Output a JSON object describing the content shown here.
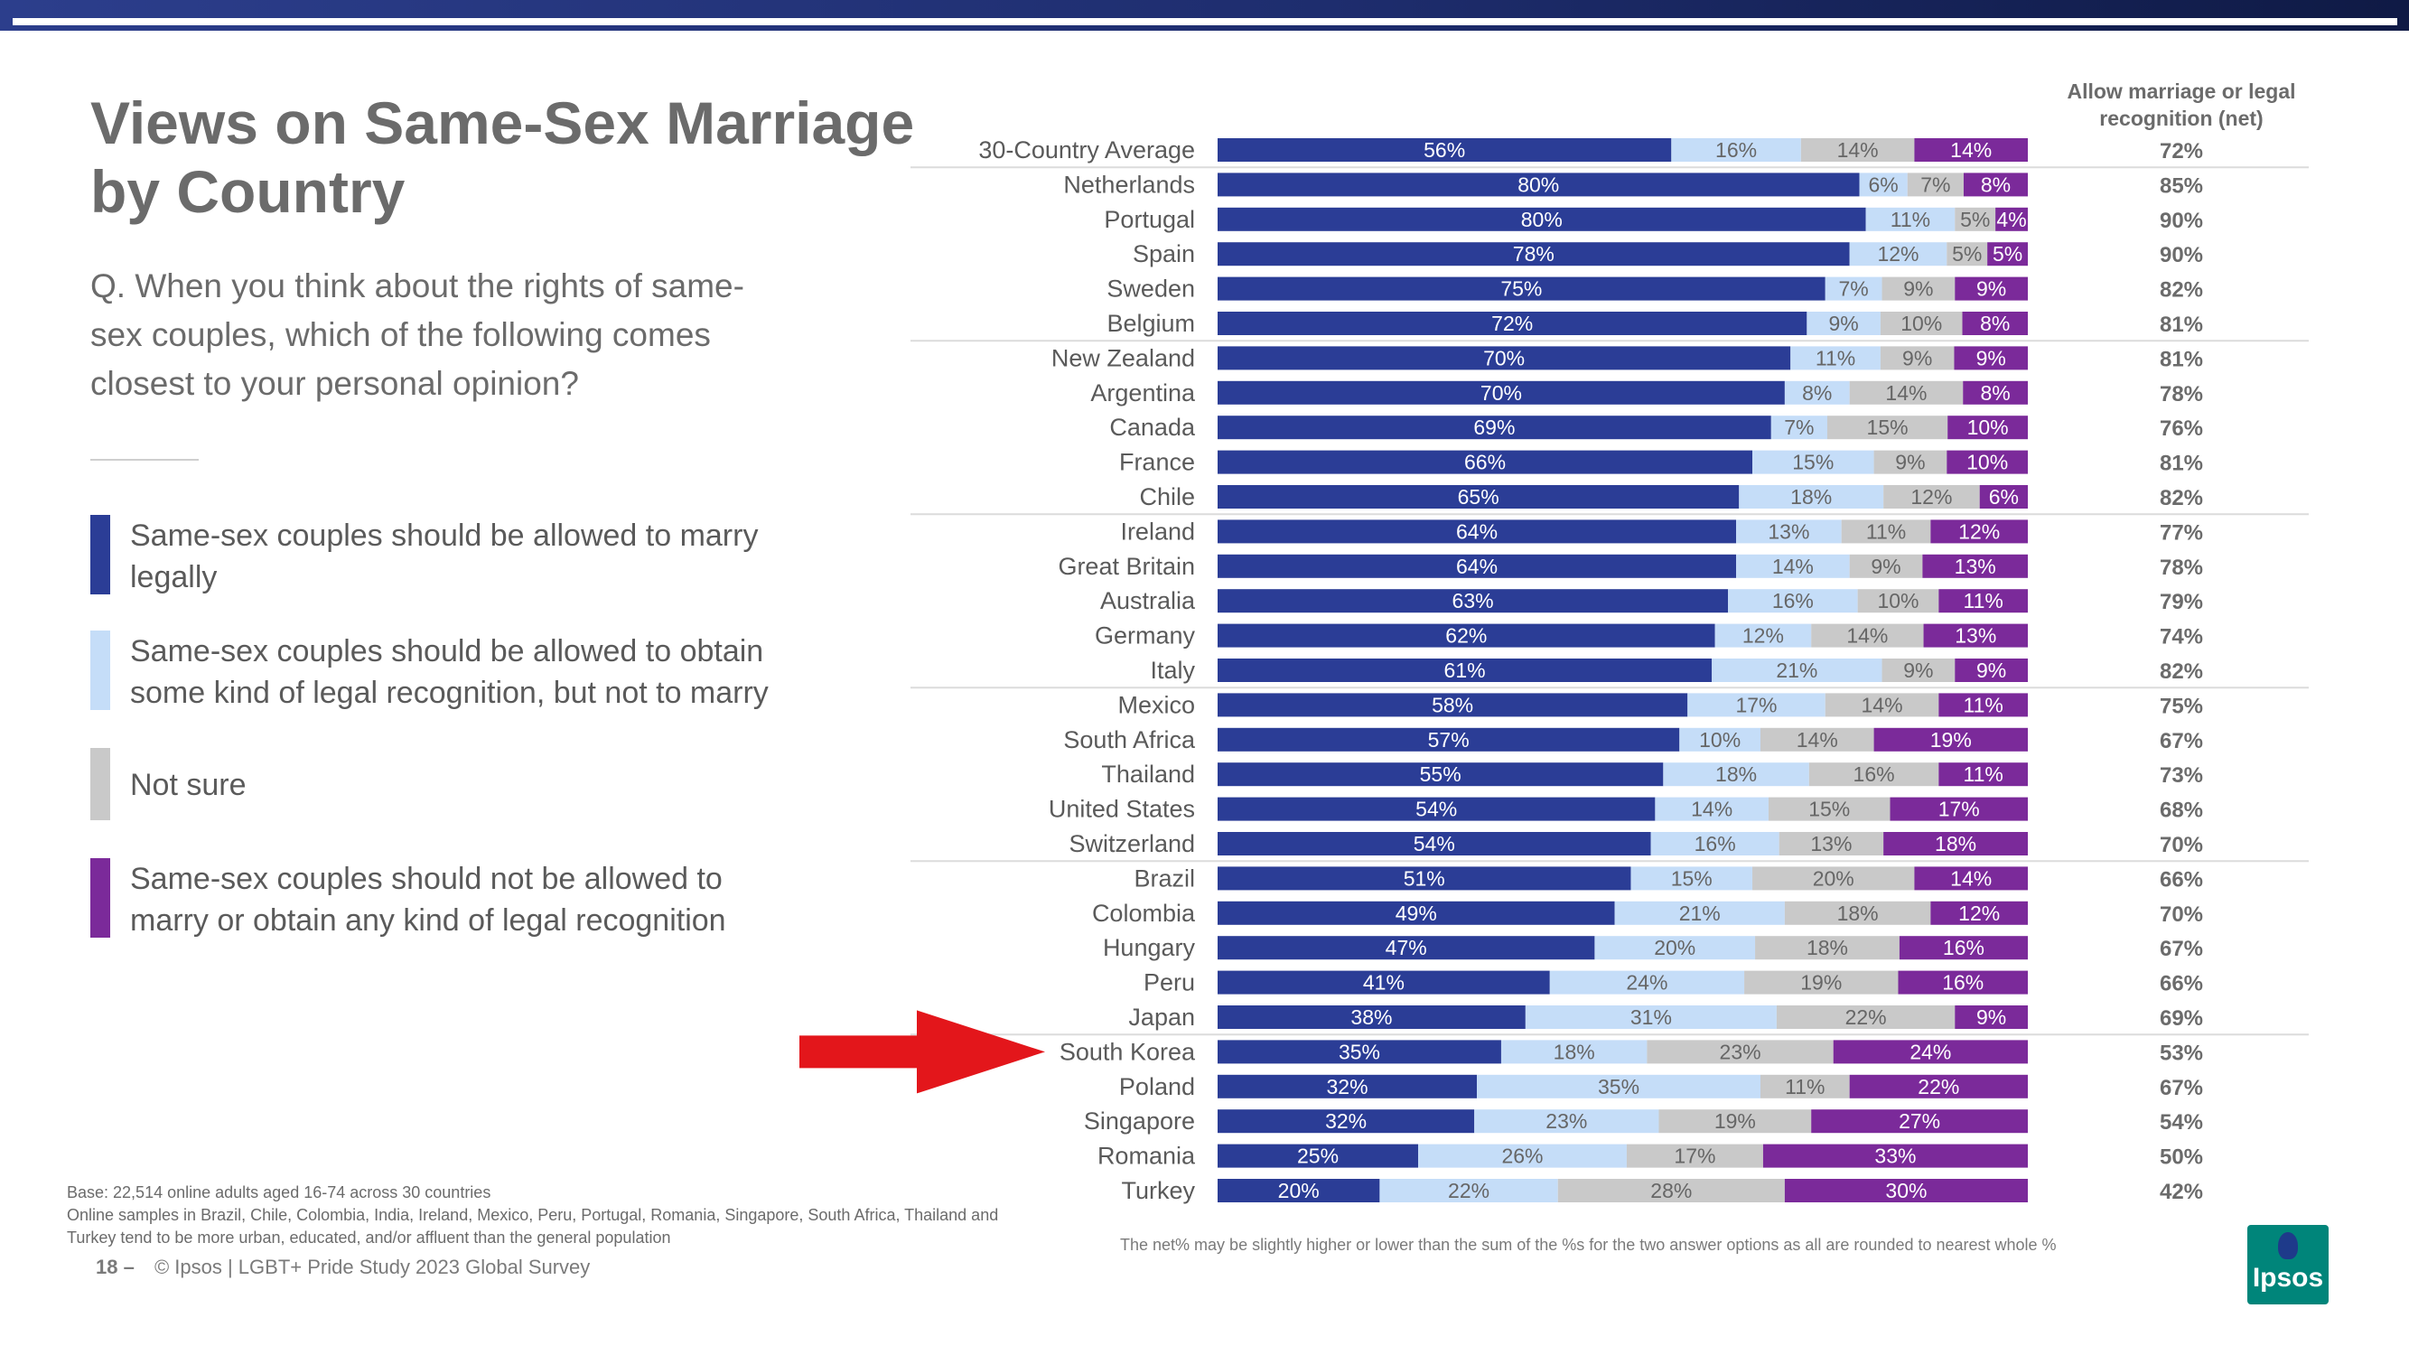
{
  "title": "Views on Same-Sex Marriage by Country",
  "question": "Q. When you think about the rights of same-sex couples, which of the following comes closest to your personal opinion?",
  "legend": [
    {
      "label": "Same-sex couples should be allowed to marry legally",
      "color": "#2b3d96"
    },
    {
      "label": "Same-sex couples should be allowed to obtain some kind of legal recognition, but not to marry",
      "color": "#c5ddf8"
    },
    {
      "label": "Not sure",
      "color": "#c9c9c9"
    },
    {
      "label": "Same-sex couples should not be allowed to marry or obtain any kind of legal recognition",
      "color": "#7b2a9a"
    }
  ],
  "footnote": "Base: 22,514 online adults aged 16-74 across 30 countries\nOnline samples in Brazil, Chile, Colombia, India, Ireland, Mexico, Peru, Portugal, Romania, Singapore, South Africa, Thailand and Turkey tend to be more urban, educated, and/or affluent than the general population",
  "footer": {
    "page": "18 –",
    "text": "© Ipsos | LGBT+ Pride Study 2023 Global Survey"
  },
  "net_note": "The net% may be slightly higher or lower than the sum of the %s for the two answer options as all are rounded to nearest whole %",
  "logo_text": "Ipsos",
  "chart_data": {
    "type": "bar",
    "orientation": "horizontal",
    "stacked": true,
    "net_header": "Allow marriage or legal recognition (net)",
    "highlight": "South Korea",
    "categories": [
      "30-Country Average",
      "Netherlands",
      "Portugal",
      "Spain",
      "Sweden",
      "Belgium",
      "New Zealand",
      "Argentina",
      "Canada",
      "France",
      "Chile",
      "Ireland",
      "Great Britain",
      "Australia",
      "Germany",
      "Italy",
      "Mexico",
      "South Africa",
      "Thailand",
      "United States",
      "Switzerland",
      "Brazil",
      "Colombia",
      "Hungary",
      "Peru",
      "Japan",
      "South Korea",
      "Poland",
      "Singapore",
      "Romania",
      "Turkey"
    ],
    "series": [
      {
        "name": "Same-sex couples should be allowed to marry legally",
        "color": "#2b3d96",
        "values": [
          56,
          80,
          80,
          78,
          75,
          72,
          70,
          70,
          69,
          66,
          65,
          64,
          64,
          63,
          62,
          61,
          58,
          57,
          55,
          54,
          54,
          51,
          49,
          47,
          41,
          38,
          35,
          32,
          32,
          25,
          20
        ]
      },
      {
        "name": "Same-sex couples should be allowed to obtain some kind of legal recognition, but not to marry",
        "color": "#c5ddf8",
        "values": [
          16,
          6,
          11,
          12,
          7,
          9,
          11,
          8,
          7,
          15,
          18,
          13,
          14,
          16,
          12,
          21,
          17,
          10,
          18,
          14,
          16,
          15,
          21,
          20,
          24,
          31,
          18,
          35,
          23,
          26,
          22
        ]
      },
      {
        "name": "Not sure",
        "color": "#c9c9c9",
        "values": [
          14,
          7,
          5,
          5,
          9,
          10,
          9,
          14,
          15,
          9,
          12,
          11,
          9,
          10,
          14,
          9,
          14,
          14,
          16,
          15,
          13,
          20,
          18,
          18,
          19,
          22,
          23,
          11,
          19,
          17,
          28
        ]
      },
      {
        "name": "Same-sex couples should not be allowed to marry or obtain any kind of legal recognition",
        "color": "#7b2a9a",
        "values": [
          14,
          8,
          4,
          5,
          9,
          8,
          9,
          8,
          10,
          10,
          6,
          12,
          13,
          11,
          13,
          9,
          11,
          19,
          11,
          17,
          18,
          14,
          12,
          16,
          16,
          9,
          24,
          22,
          27,
          33,
          30
        ]
      }
    ],
    "net": [
      "72%",
      "85%",
      "90%",
      "90%",
      "82%",
      "81%",
      "81%",
      "78%",
      "76%",
      "81%",
      "82%",
      "77%",
      "78%",
      "79%",
      "74%",
      "82%",
      "75%",
      "67%",
      "73%",
      "68%",
      "70%",
      "66%",
      "70%",
      "67%",
      "66%",
      "69%",
      "53%",
      "67%",
      "54%",
      "50%",
      "42%"
    ]
  }
}
